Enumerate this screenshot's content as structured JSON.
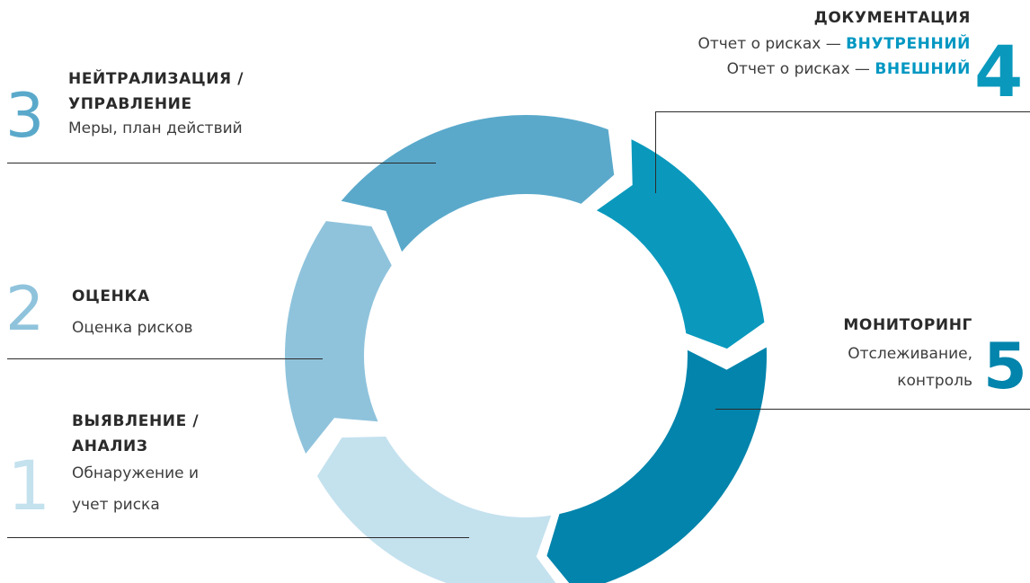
{
  "colors": {
    "stage1": "#c4e1ee",
    "stage2": "#8fc3dc",
    "stage3": "#5aa9cb",
    "stage4": "#0a99bd",
    "stage5": "#0284ac",
    "accent": "#0097c2",
    "text": "#3a3a3a"
  },
  "stages": [
    {
      "number": "1",
      "title_line1": "ВЫЯВЛЕНИЕ /",
      "title_line2": "АНАЛИЗ",
      "desc_line1": "Обнаружение и",
      "desc_line2": "учет риска"
    },
    {
      "number": "2",
      "title": "ОЦЕНКА",
      "desc": "Оценка рисков"
    },
    {
      "number": "3",
      "title_line1": "НЕЙТРАЛИЗАЦИЯ /",
      "title_line2": "УПРАВЛЕНИЕ",
      "desc": "Меры, план действий"
    },
    {
      "number": "4",
      "title": "ДОКУМЕНТАЦИЯ",
      "line1_prefix": "Отчет о рисках — ",
      "line1_emphasis": "ВНУТРЕННИЙ",
      "line2_prefix": "Отчет о рисках — ",
      "line2_emphasis": "ВНЕШНИЙ"
    },
    {
      "number": "5",
      "title": "МОНИТОРИНГ",
      "desc_line1": "Отслеживание,",
      "desc_line2": "контроль"
    }
  ]
}
